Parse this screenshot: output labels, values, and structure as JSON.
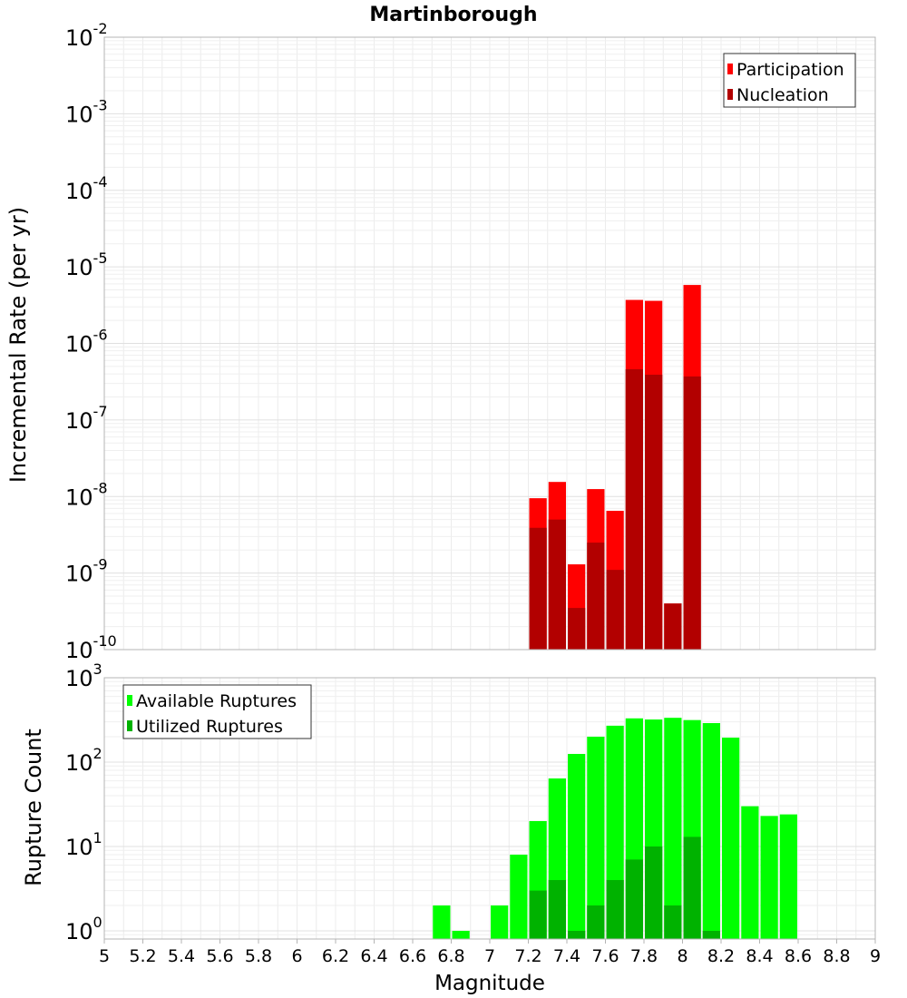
{
  "chart_data": [
    {
      "type": "bar",
      "title": "Martinborough",
      "xlabel": "",
      "ylabel": "Incremental Rate (per yr)",
      "yscale": "log",
      "ylim": [
        1e-10,
        0.01
      ],
      "xlim": [
        5,
        9
      ],
      "grid": true,
      "legend_position": "top-right",
      "y_tick_labels": [
        {
          "base": "10",
          "exp": "-10"
        },
        {
          "base": "10",
          "exp": "-9"
        },
        {
          "base": "10",
          "exp": "-8"
        },
        {
          "base": "10",
          "exp": "-7"
        },
        {
          "base": "10",
          "exp": "-6"
        },
        {
          "base": "10",
          "exp": "-5"
        },
        {
          "base": "10",
          "exp": "-4"
        },
        {
          "base": "10",
          "exp": "-3"
        },
        {
          "base": "10",
          "exp": "-2"
        }
      ],
      "series": [
        {
          "name": "Participation",
          "color": "#ff0000",
          "x": [
            7.25,
            7.35,
            7.45,
            7.55,
            7.65,
            7.75,
            7.85,
            7.95,
            8.05
          ],
          "values": [
            9.5e-09,
            1.55e-08,
            1.3e-09,
            1.25e-08,
            6.5e-09,
            3.7e-06,
            3.6e-06,
            4e-10,
            5.8e-06
          ]
        },
        {
          "name": "Nucleation",
          "color": "#b20000",
          "x": [
            7.25,
            7.35,
            7.45,
            7.55,
            7.65,
            7.75,
            7.85,
            7.95,
            8.05
          ],
          "values": [
            3.9e-09,
            5e-09,
            3.5e-10,
            2.5e-09,
            1.1e-09,
            4.6e-07,
            3.9e-07,
            4e-10,
            3.7e-07
          ]
        }
      ]
    },
    {
      "type": "bar",
      "title": "",
      "xlabel": "Magnitude",
      "ylabel": "Rupture Count",
      "yscale": "log",
      "ylim": [
        0.8,
        1000
      ],
      "xlim": [
        5,
        9
      ],
      "grid": true,
      "legend_position": "top-left",
      "x_tick_labels": [
        "5",
        "5.2",
        "5.4",
        "5.6",
        "5.8",
        "6",
        "6.2",
        "6.4",
        "6.6",
        "6.8",
        "7",
        "7.2",
        "7.4",
        "7.6",
        "7.8",
        "8",
        "8.2",
        "8.4",
        "8.6",
        "8.8",
        "9"
      ],
      "y_tick_labels": [
        {
          "base": "10",
          "exp": "0"
        },
        {
          "base": "10",
          "exp": "1"
        },
        {
          "base": "10",
          "exp": "2"
        },
        {
          "base": "10",
          "exp": "3"
        }
      ],
      "series": [
        {
          "name": "Available Ruptures",
          "color": "#00ff00",
          "x": [
            6.75,
            6.85,
            7.05,
            7.15,
            7.25,
            7.35,
            7.45,
            7.55,
            7.65,
            7.75,
            7.85,
            7.95,
            8.05,
            8.15,
            8.25,
            8.35,
            8.45,
            8.55
          ],
          "values": [
            2,
            1,
            2,
            8,
            20,
            64,
            125,
            200,
            270,
            330,
            320,
            335,
            315,
            290,
            195,
            30,
            23,
            24
          ]
        },
        {
          "name": "Utilized Ruptures",
          "color": "#00b200",
          "x": [
            7.25,
            7.35,
            7.45,
            7.55,
            7.65,
            7.75,
            7.85,
            7.95,
            8.05,
            8.15
          ],
          "values": [
            3,
            4,
            1,
            2,
            4,
            7,
            10,
            2,
            13,
            1
          ]
        }
      ]
    }
  ]
}
